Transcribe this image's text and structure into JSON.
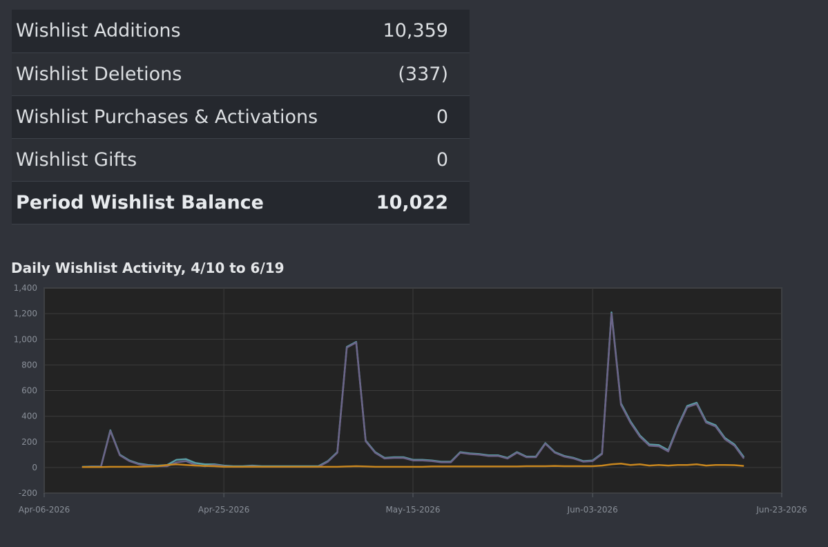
{
  "summary": {
    "rows": [
      {
        "label": "Wishlist Additions",
        "value": "10,359"
      },
      {
        "label": "Wishlist Deletions",
        "value": "(337)"
      },
      {
        "label": "Wishlist Purchases & Activations",
        "value": "0"
      },
      {
        "label": "Wishlist Gifts",
        "value": "0"
      },
      {
        "label": "Period Wishlist Balance",
        "value": "10,022"
      }
    ]
  },
  "chart_data": {
    "type": "line",
    "title": "Daily Wishlist Activity, 4/10 to 6/19",
    "ylim": [
      -200,
      1400
    ],
    "y_ticks": [
      -200,
      0,
      200,
      400,
      600,
      800,
      1000,
      1200,
      1400
    ],
    "y_tick_labels": [
      "-200",
      "0",
      "200",
      "400",
      "600",
      "800",
      "1,000",
      "1,200",
      "1,400"
    ],
    "x_ticks": [
      "2026-04-06",
      "2026-04-25",
      "2026-05-15",
      "2026-06-03",
      "2026-06-23"
    ],
    "x_tick_labels": [
      "Apr-06-2026",
      "Apr-25-2026",
      "May-15-2026",
      "Jun-03-2026",
      "Jun-23-2026"
    ],
    "grid": true,
    "colors": {
      "additions": "#5a9fa6",
      "balance": "#6c6488",
      "deletions": "#c8861e",
      "plot_bg": "#232323",
      "grid": "#3c3c3c"
    },
    "series": [
      {
        "key": "additions",
        "x": [
          "2026-04-10",
          "2026-04-11",
          "2026-04-12",
          "2026-04-13",
          "2026-04-14",
          "2026-04-15",
          "2026-04-16",
          "2026-04-17",
          "2026-04-18",
          "2026-04-19",
          "2026-04-20",
          "2026-04-21",
          "2026-04-22",
          "2026-04-23",
          "2026-04-24",
          "2026-04-25",
          "2026-04-26",
          "2026-04-27",
          "2026-04-28",
          "2026-04-29",
          "2026-04-30",
          "2026-05-01",
          "2026-05-02",
          "2026-05-03",
          "2026-05-04",
          "2026-05-05",
          "2026-05-06",
          "2026-05-07",
          "2026-05-08",
          "2026-05-09",
          "2026-05-10",
          "2026-05-11",
          "2026-05-12",
          "2026-05-13",
          "2026-05-14",
          "2026-05-15",
          "2026-05-16",
          "2026-05-17",
          "2026-05-18",
          "2026-05-19",
          "2026-05-20",
          "2026-05-21",
          "2026-05-22",
          "2026-05-23",
          "2026-05-24",
          "2026-05-25",
          "2026-05-26",
          "2026-05-27",
          "2026-05-28",
          "2026-05-29",
          "2026-05-30",
          "2026-05-31",
          "2026-06-01",
          "2026-06-02",
          "2026-06-03",
          "2026-06-04",
          "2026-06-05",
          "2026-06-06",
          "2026-06-07",
          "2026-06-08",
          "2026-06-09",
          "2026-06-10",
          "2026-06-11",
          "2026-06-12",
          "2026-06-13",
          "2026-06-14",
          "2026-06-15",
          "2026-06-16",
          "2026-06-17",
          "2026-06-18",
          "2026-06-19"
        ],
        "values": [
          5,
          8,
          8,
          290,
          100,
          55,
          30,
          20,
          15,
          20,
          60,
          65,
          35,
          25,
          25,
          15,
          10,
          10,
          15,
          10,
          10,
          10,
          10,
          10,
          10,
          10,
          50,
          120,
          940,
          980,
          210,
          120,
          75,
          80,
          80,
          60,
          60,
          55,
          45,
          45,
          120,
          110,
          105,
          95,
          95,
          75,
          120,
          85,
          85,
          190,
          120,
          90,
          75,
          50,
          55,
          110,
          1210,
          500,
          360,
          250,
          180,
          175,
          135,
          320,
          480,
          505,
          360,
          330,
          230,
          180,
          80
        ]
      },
      {
        "key": "balance",
        "x": [
          "2026-04-10",
          "2026-04-11",
          "2026-04-12",
          "2026-04-13",
          "2026-04-14",
          "2026-04-15",
          "2026-04-16",
          "2026-04-17",
          "2026-04-18",
          "2026-04-19",
          "2026-04-20",
          "2026-04-21",
          "2026-04-22",
          "2026-04-23",
          "2026-04-24",
          "2026-04-25",
          "2026-04-26",
          "2026-04-27",
          "2026-04-28",
          "2026-04-29",
          "2026-04-30",
          "2026-05-01",
          "2026-05-02",
          "2026-05-03",
          "2026-05-04",
          "2026-05-05",
          "2026-05-06",
          "2026-05-07",
          "2026-05-08",
          "2026-05-09",
          "2026-05-10",
          "2026-05-11",
          "2026-05-12",
          "2026-05-13",
          "2026-05-14",
          "2026-05-15",
          "2026-05-16",
          "2026-05-17",
          "2026-05-18",
          "2026-05-19",
          "2026-05-20",
          "2026-05-21",
          "2026-05-22",
          "2026-05-23",
          "2026-05-24",
          "2026-05-25",
          "2026-05-26",
          "2026-05-27",
          "2026-05-28",
          "2026-05-29",
          "2026-05-30",
          "2026-05-31",
          "2026-06-01",
          "2026-06-02",
          "2026-06-03",
          "2026-06-04",
          "2026-06-05",
          "2026-06-06",
          "2026-06-07",
          "2026-06-08",
          "2026-06-09",
          "2026-06-10",
          "2026-06-11",
          "2026-06-12",
          "2026-06-13",
          "2026-06-14",
          "2026-06-15",
          "2026-06-16",
          "2026-06-17",
          "2026-06-18",
          "2026-06-19"
        ],
        "values": [
          3,
          6,
          6,
          285,
          95,
          50,
          25,
          15,
          10,
          10,
          40,
          50,
          20,
          10,
          20,
          10,
          5,
          5,
          10,
          5,
          5,
          5,
          5,
          5,
          5,
          5,
          45,
          115,
          935,
          975,
          205,
          115,
          70,
          75,
          75,
          55,
          55,
          50,
          40,
          40,
          115,
          105,
          100,
          90,
          90,
          70,
          115,
          80,
          80,
          185,
          115,
          85,
          70,
          45,
          50,
          105,
          1200,
          490,
          350,
          240,
          170,
          165,
          125,
          310,
          470,
          495,
          350,
          320,
          220,
          170,
          70
        ]
      },
      {
        "key": "deletions",
        "x": [
          "2026-04-10",
          "2026-04-11",
          "2026-04-12",
          "2026-04-13",
          "2026-04-14",
          "2026-04-15",
          "2026-04-16",
          "2026-04-17",
          "2026-04-18",
          "2026-04-19",
          "2026-04-20",
          "2026-04-21",
          "2026-04-22",
          "2026-04-23",
          "2026-04-24",
          "2026-04-25",
          "2026-04-26",
          "2026-04-27",
          "2026-04-28",
          "2026-04-29",
          "2026-04-30",
          "2026-05-01",
          "2026-05-02",
          "2026-05-03",
          "2026-05-04",
          "2026-05-05",
          "2026-05-06",
          "2026-05-07",
          "2026-05-08",
          "2026-05-09",
          "2026-05-10",
          "2026-05-11",
          "2026-05-12",
          "2026-05-13",
          "2026-05-14",
          "2026-05-15",
          "2026-05-16",
          "2026-05-17",
          "2026-05-18",
          "2026-05-19",
          "2026-05-20",
          "2026-05-21",
          "2026-05-22",
          "2026-05-23",
          "2026-05-24",
          "2026-05-25",
          "2026-05-26",
          "2026-05-27",
          "2026-05-28",
          "2026-05-29",
          "2026-05-30",
          "2026-05-31",
          "2026-06-01",
          "2026-06-02",
          "2026-06-03",
          "2026-06-04",
          "2026-06-05",
          "2026-06-06",
          "2026-06-07",
          "2026-06-08",
          "2026-06-09",
          "2026-06-10",
          "2026-06-11",
          "2026-06-12",
          "2026-06-13",
          "2026-06-14",
          "2026-06-15",
          "2026-06-16",
          "2026-06-17",
          "2026-06-18",
          "2026-06-19"
        ],
        "values": [
          3,
          3,
          3,
          5,
          5,
          5,
          5,
          8,
          10,
          20,
          25,
          20,
          15,
          12,
          10,
          5,
          5,
          5,
          5,
          5,
          5,
          5,
          5,
          5,
          5,
          5,
          5,
          5,
          8,
          10,
          8,
          5,
          5,
          5,
          5,
          5,
          5,
          8,
          8,
          8,
          8,
          8,
          8,
          8,
          8,
          8,
          8,
          10,
          10,
          10,
          12,
          10,
          10,
          10,
          10,
          15,
          25,
          30,
          20,
          25,
          15,
          20,
          15,
          20,
          20,
          25,
          15,
          20,
          20,
          18,
          12
        ]
      }
    ]
  }
}
